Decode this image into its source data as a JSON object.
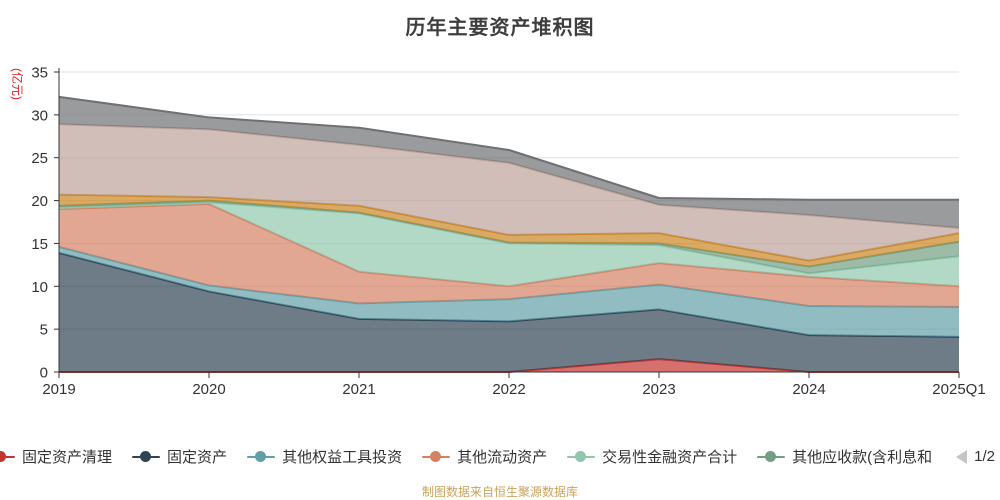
{
  "title": "历年主要资产堆积图",
  "y_axis": {
    "name": "(亿元)",
    "name_color": "#e02020",
    "min": 0,
    "max": 35,
    "interval": 5,
    "tick_labels": [
      "0",
      "5",
      "10",
      "15",
      "20",
      "25",
      "30",
      "35"
    ]
  },
  "x_axis": {
    "categories": [
      "2019",
      "2020",
      "2021",
      "2022",
      "2023",
      "2024",
      "2025Q1"
    ]
  },
  "legend": {
    "visible_items": [
      {
        "label": "固定资产清理",
        "color": "#c23531"
      },
      {
        "label": "固定资产",
        "color": "#2f4554"
      },
      {
        "label": "其他权益工具投资",
        "color": "#61a0a8"
      },
      {
        "label": "其他流动资产",
        "color": "#d48265"
      },
      {
        "label": "交易性金融资产合计",
        "color": "#91c7ae"
      },
      {
        "label": "其他应收款(含利息和",
        "color": "#749f83"
      }
    ],
    "pagination": {
      "current": "1/2",
      "prev_icon_color": "#c5c5c5",
      "next_icon_color": "#2f4554"
    }
  },
  "footer": {
    "text": "制图数据来自恒生聚源数据库",
    "color": "#c9a35d"
  },
  "chart_data": {
    "type": "area",
    "stacked": true,
    "grid": true,
    "legend_position": "bottom",
    "x": [
      "2019",
      "2020",
      "2021",
      "2022",
      "2023",
      "2024",
      "2025Q1"
    ],
    "ylim": [
      0,
      35
    ],
    "area_opacity": 0.7,
    "series": [
      {
        "name": "固定资产清理",
        "color": "#c23531",
        "values": [
          0,
          0,
          0,
          0,
          1.5,
          0,
          0
        ]
      },
      {
        "name": "固定资产",
        "color": "#2f4554",
        "values": [
          13.9,
          9.4,
          6.2,
          5.9,
          5.8,
          4.3,
          4.1
        ]
      },
      {
        "name": "其他权益工具投资",
        "color": "#61a0a8",
        "values": [
          0.7,
          0.7,
          1.8,
          2.6,
          2.9,
          3.4,
          3.5
        ]
      },
      {
        "name": "其他流动资产",
        "color": "#d48265",
        "values": [
          4.4,
          9.5,
          3.7,
          1.5,
          2.5,
          3.4,
          2.4
        ]
      },
      {
        "name": "交易性金融资产合计",
        "color": "#91c7ae",
        "values": [
          0.2,
          0.2,
          6.8,
          5.0,
          2.1,
          0.4,
          3.5
        ]
      },
      {
        "name": "其他应收款(含利息和",
        "color": "#749f83",
        "values": [
          0.2,
          0.2,
          0.1,
          0.1,
          0.2,
          0.8,
          1.7
        ]
      },
      {
        "name": "",
        "color": "#ca8622",
        "values": [
          1.3,
          0.4,
          0.8,
          0.9,
          1.2,
          0.7,
          1.0
        ]
      },
      {
        "name": "",
        "color": "#bda29a",
        "values": [
          8.2,
          7.9,
          7.1,
          8.4,
          3.3,
          5.3,
          0.6
        ]
      },
      {
        "name": "",
        "color": "#6e7074",
        "values": [
          3.2,
          1.4,
          2.0,
          1.5,
          0.8,
          1.8,
          3.3
        ]
      }
    ]
  }
}
